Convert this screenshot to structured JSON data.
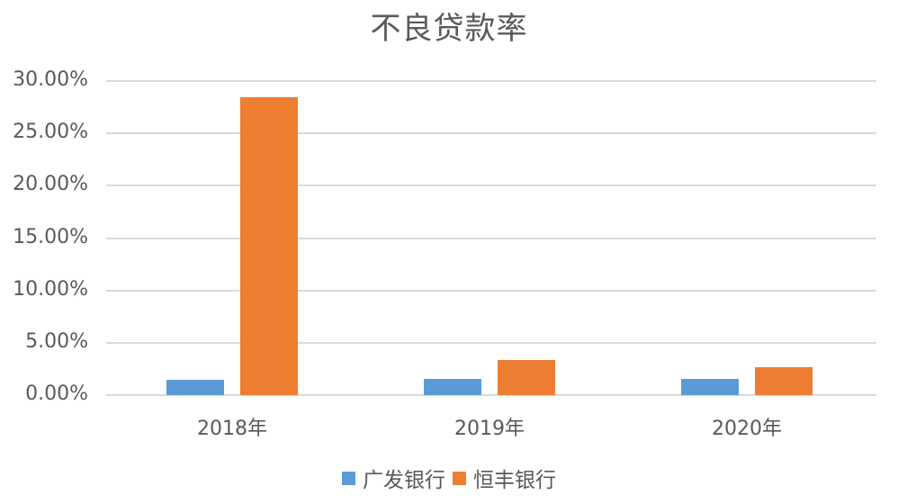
{
  "chart_data": {
    "type": "bar",
    "title": "不良贷款率",
    "categories": [
      "2018年",
      "2019年",
      "2020年"
    ],
    "series": [
      {
        "name": "广发银行",
        "color": "#5b9bd5",
        "values": [
          1.45,
          1.55,
          1.55
        ]
      },
      {
        "name": "恒丰银行",
        "color": "#ed7d31",
        "values": [
          28.46,
          3.35,
          2.67
        ]
      }
    ],
    "xlabel": "",
    "ylabel": "",
    "ylim": [
      0,
      30
    ],
    "yticks": [
      "0.00%",
      "5.00%",
      "10.00%",
      "15.00%",
      "20.00%",
      "25.00%",
      "30.00%"
    ],
    "grid": true,
    "legend_position": "bottom"
  }
}
